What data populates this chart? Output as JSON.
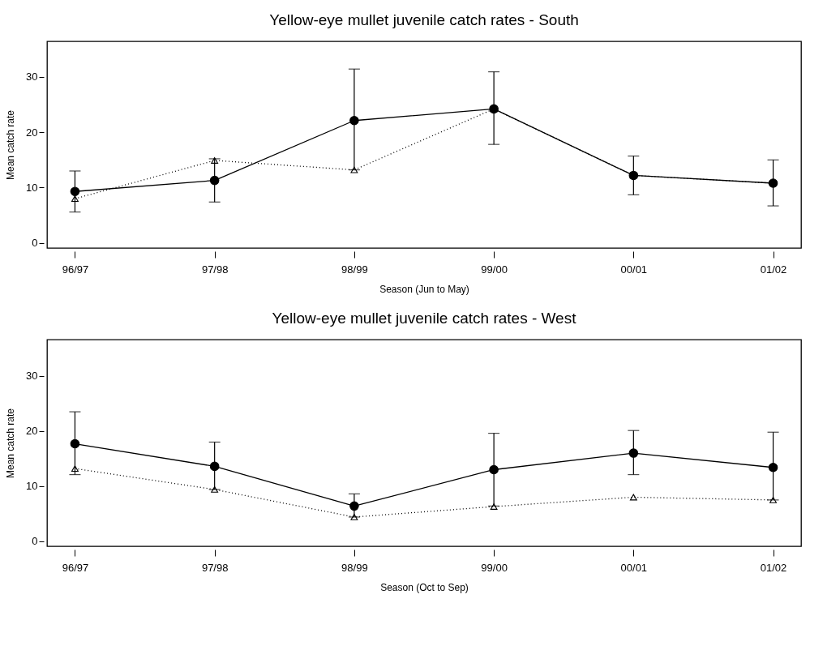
{
  "chart_data": [
    {
      "type": "line",
      "title": "Yellow-eye mullet juvenile catch rates - South",
      "xlabel": "Season (Jun to May)",
      "ylabel": "Mean catch rate",
      "categories": [
        "96/97",
        "97/98",
        "98/99",
        "99/00",
        "00/01",
        "01/02"
      ],
      "ylim": [
        -0.9,
        36.4
      ],
      "yticks": [
        0,
        10,
        20,
        30
      ],
      "grid": false,
      "series": [
        {
          "color": "#000000",
          "marker": "circle",
          "line_style": "solid",
          "values": [
            9.3,
            11.3,
            22.1,
            24.2,
            12.2,
            10.8
          ],
          "errors": [
            [
              5.6,
              13.0
            ],
            [
              7.4,
              15.2
            ],
            [
              13.2,
              31.4
            ],
            [
              17.8,
              30.9
            ],
            [
              8.7,
              15.7
            ],
            [
              6.7,
              15.0
            ]
          ]
        },
        {
          "color": "#000000",
          "marker": "triangle",
          "line_style": "dotted",
          "values": [
            8.0,
            14.9,
            13.2,
            24.2,
            12.2,
            10.8
          ]
        }
      ]
    },
    {
      "type": "line",
      "title": "Yellow-eye mullet juvenile catch rates - West",
      "xlabel": "Season (Oct to Sep)",
      "ylabel": "Mean catch rate",
      "categories": [
        "96/97",
        "97/98",
        "98/99",
        "99/00",
        "00/01",
        "01/02"
      ],
      "ylim": [
        -0.9,
        36.6
      ],
      "yticks": [
        0,
        10,
        20,
        30
      ],
      "grid": false,
      "series": [
        {
          "color": "#000000",
          "marker": "circle",
          "line_style": "solid",
          "values": [
            17.7,
            13.6,
            6.4,
            13.0,
            16.0,
            13.4
          ],
          "errors": [
            [
              12.1,
              23.5
            ],
            [
              9.4,
              18.0
            ],
            [
              4.4,
              8.6
            ],
            [
              6.4,
              19.6
            ],
            [
              12.1,
              20.1
            ],
            [
              7.5,
              19.8
            ]
          ]
        },
        {
          "color": "#000000",
          "marker": "triangle",
          "line_style": "dotted",
          "values": [
            13.2,
            9.4,
            4.4,
            6.3,
            8.0,
            7.5
          ]
        }
      ]
    }
  ]
}
